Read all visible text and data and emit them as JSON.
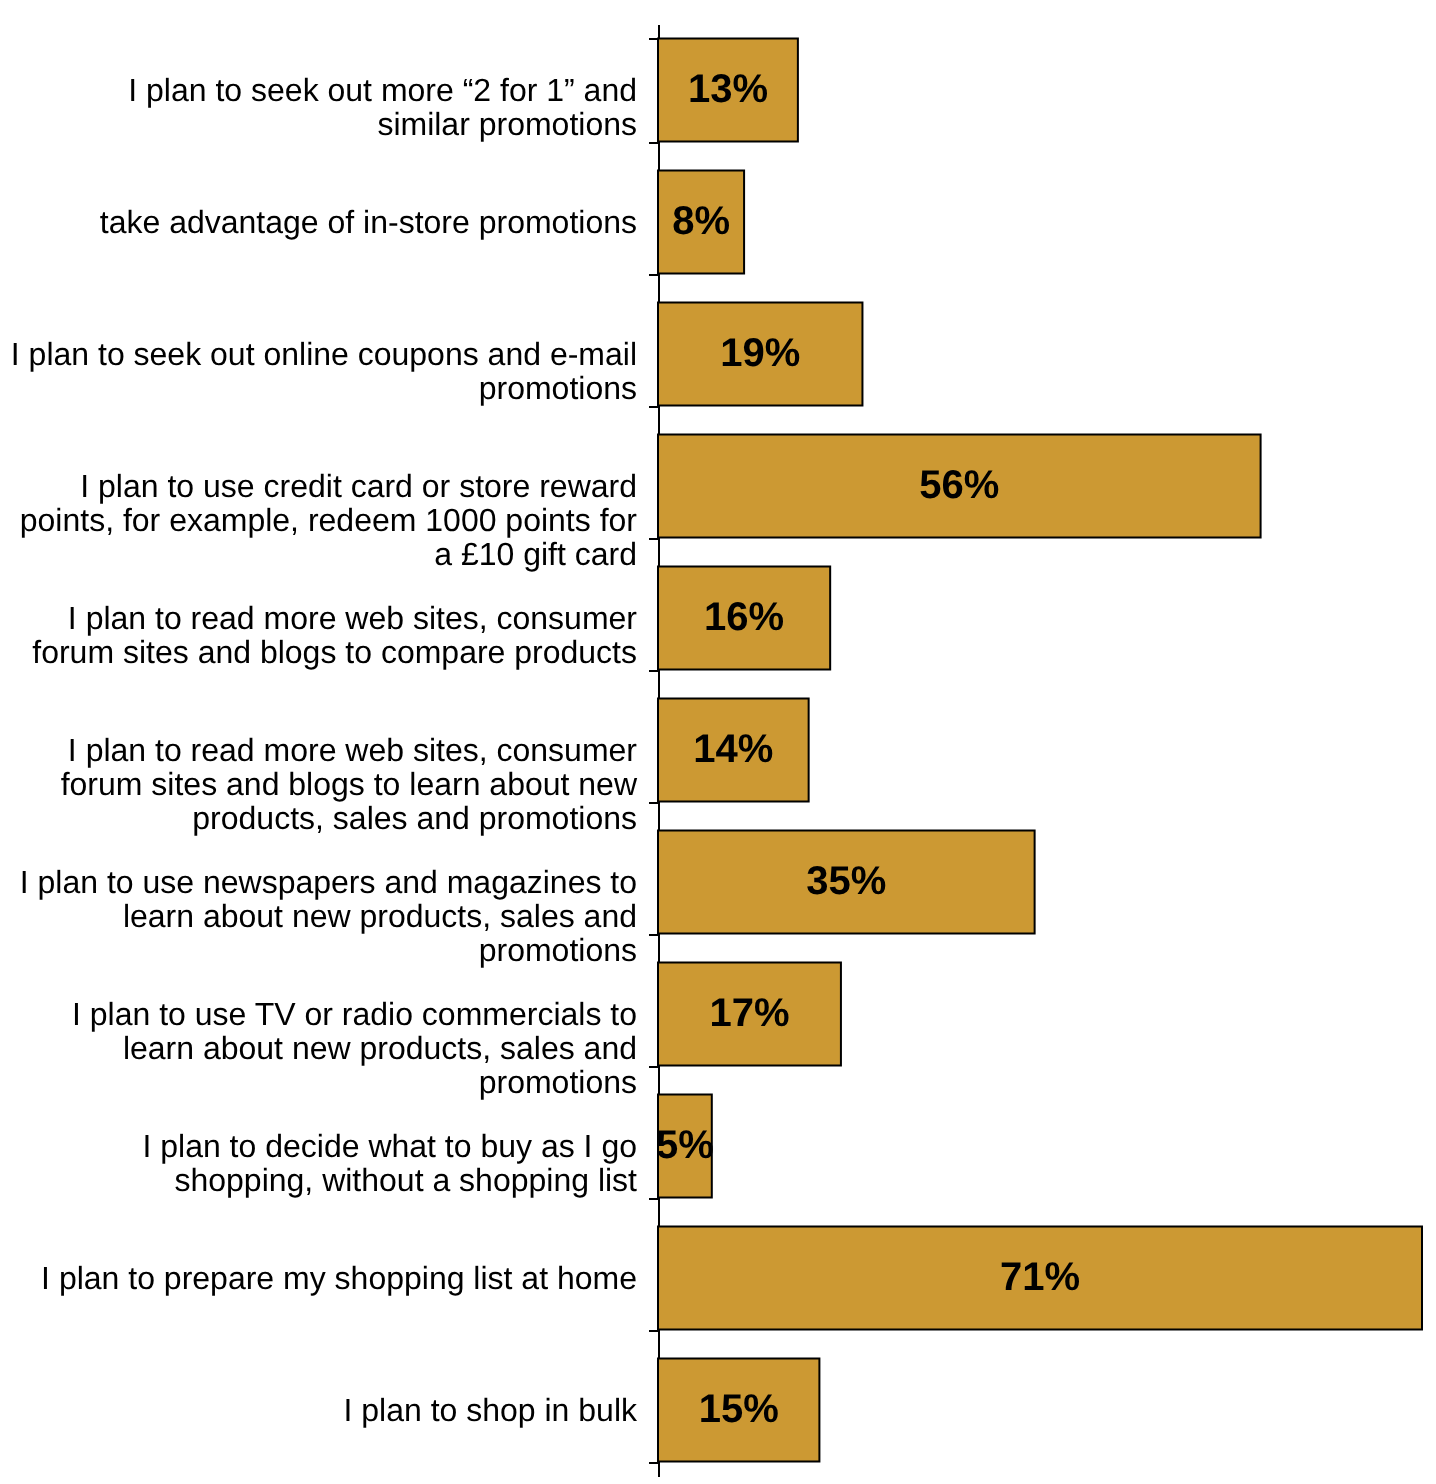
{
  "chart_data": {
    "type": "bar",
    "orientation": "horizontal",
    "color": "#cc9933",
    "value_labels": [
      "13%",
      "8%",
      "19%",
      "56%",
      "16%",
      "14%",
      "35%",
      "17%",
      "5%",
      "71%",
      "15%"
    ],
    "categories": [
      "I plan to seek out more “2 for 1” and similar promotions",
      "take advantage of in-store promotions",
      "I plan to seek out online coupons and e-mail promotions",
      "I plan to use credit card or store reward points, for example, redeem 1000 points for a £10 gift card",
      "I plan to read more web sites, consumer forum sites and blogs to compare products",
      "I plan to read more web sites, consumer forum sites and blogs to learn about new products, sales and promotions",
      "I plan to use newspapers and magazines to learn about new products, sales and promotions",
      "I plan to use TV or radio commercials to learn about new products, sales and promotions",
      "I plan to decide what to buy as I go shopping, without a shopping list",
      "I plan to prepare my shopping list at home",
      "I plan to shop in bulk"
    ],
    "values": [
      13,
      8,
      19,
      56,
      16,
      14,
      35,
      17,
      5,
      71,
      15
    ]
  }
}
